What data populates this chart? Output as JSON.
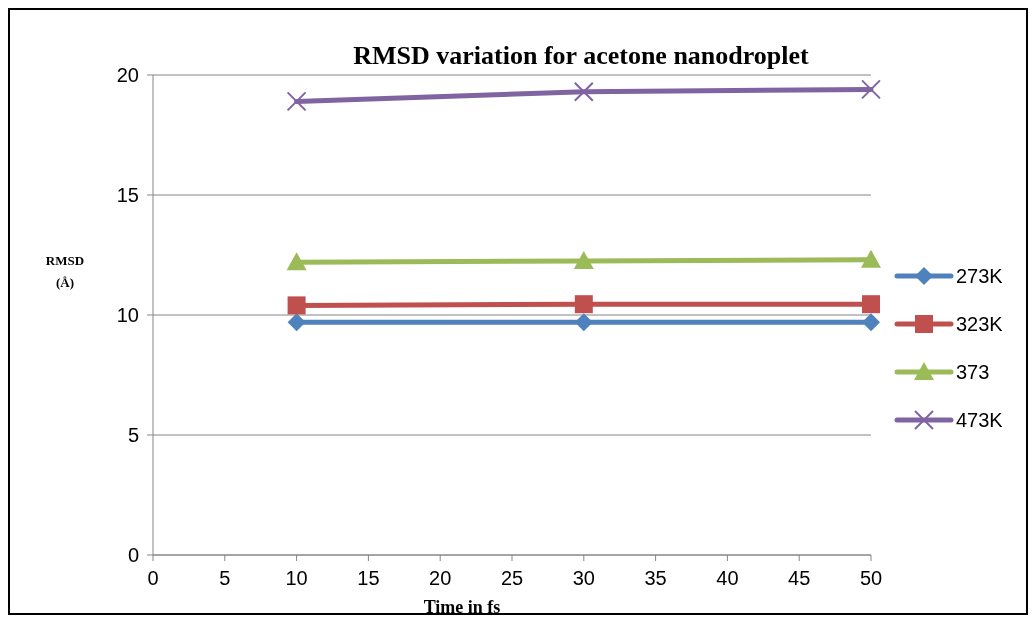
{
  "chart_data": {
    "type": "line",
    "title": "RMSD variation for  acetone  nanodroplet",
    "xlabel": "Time in fs",
    "ylabel": "RMSD (Å)",
    "x": [
      10,
      30,
      50
    ],
    "series": [
      {
        "name": "273K",
        "color": "#4f81bd",
        "marker": "diamond",
        "values": [
          9.7,
          9.7,
          9.7
        ]
      },
      {
        "name": "323K",
        "color": "#c0504d",
        "marker": "square",
        "values": [
          10.4,
          10.45,
          10.45
        ]
      },
      {
        "name": "373",
        "color": "#9bbb59",
        "marker": "triangle",
        "values": [
          12.2,
          12.25,
          12.3
        ]
      },
      {
        "name": "473K",
        "color": "#8064a2",
        "marker": "cross",
        "values": [
          18.9,
          19.3,
          19.4
        ]
      }
    ],
    "xlim": [
      0,
      50
    ],
    "xticks": [
      0,
      5,
      10,
      15,
      20,
      25,
      30,
      35,
      40,
      45,
      50
    ],
    "ylim": [
      0,
      20
    ],
    "yticks": [
      0,
      5,
      10,
      15,
      20
    ],
    "grid": "y",
    "legend": "right"
  }
}
